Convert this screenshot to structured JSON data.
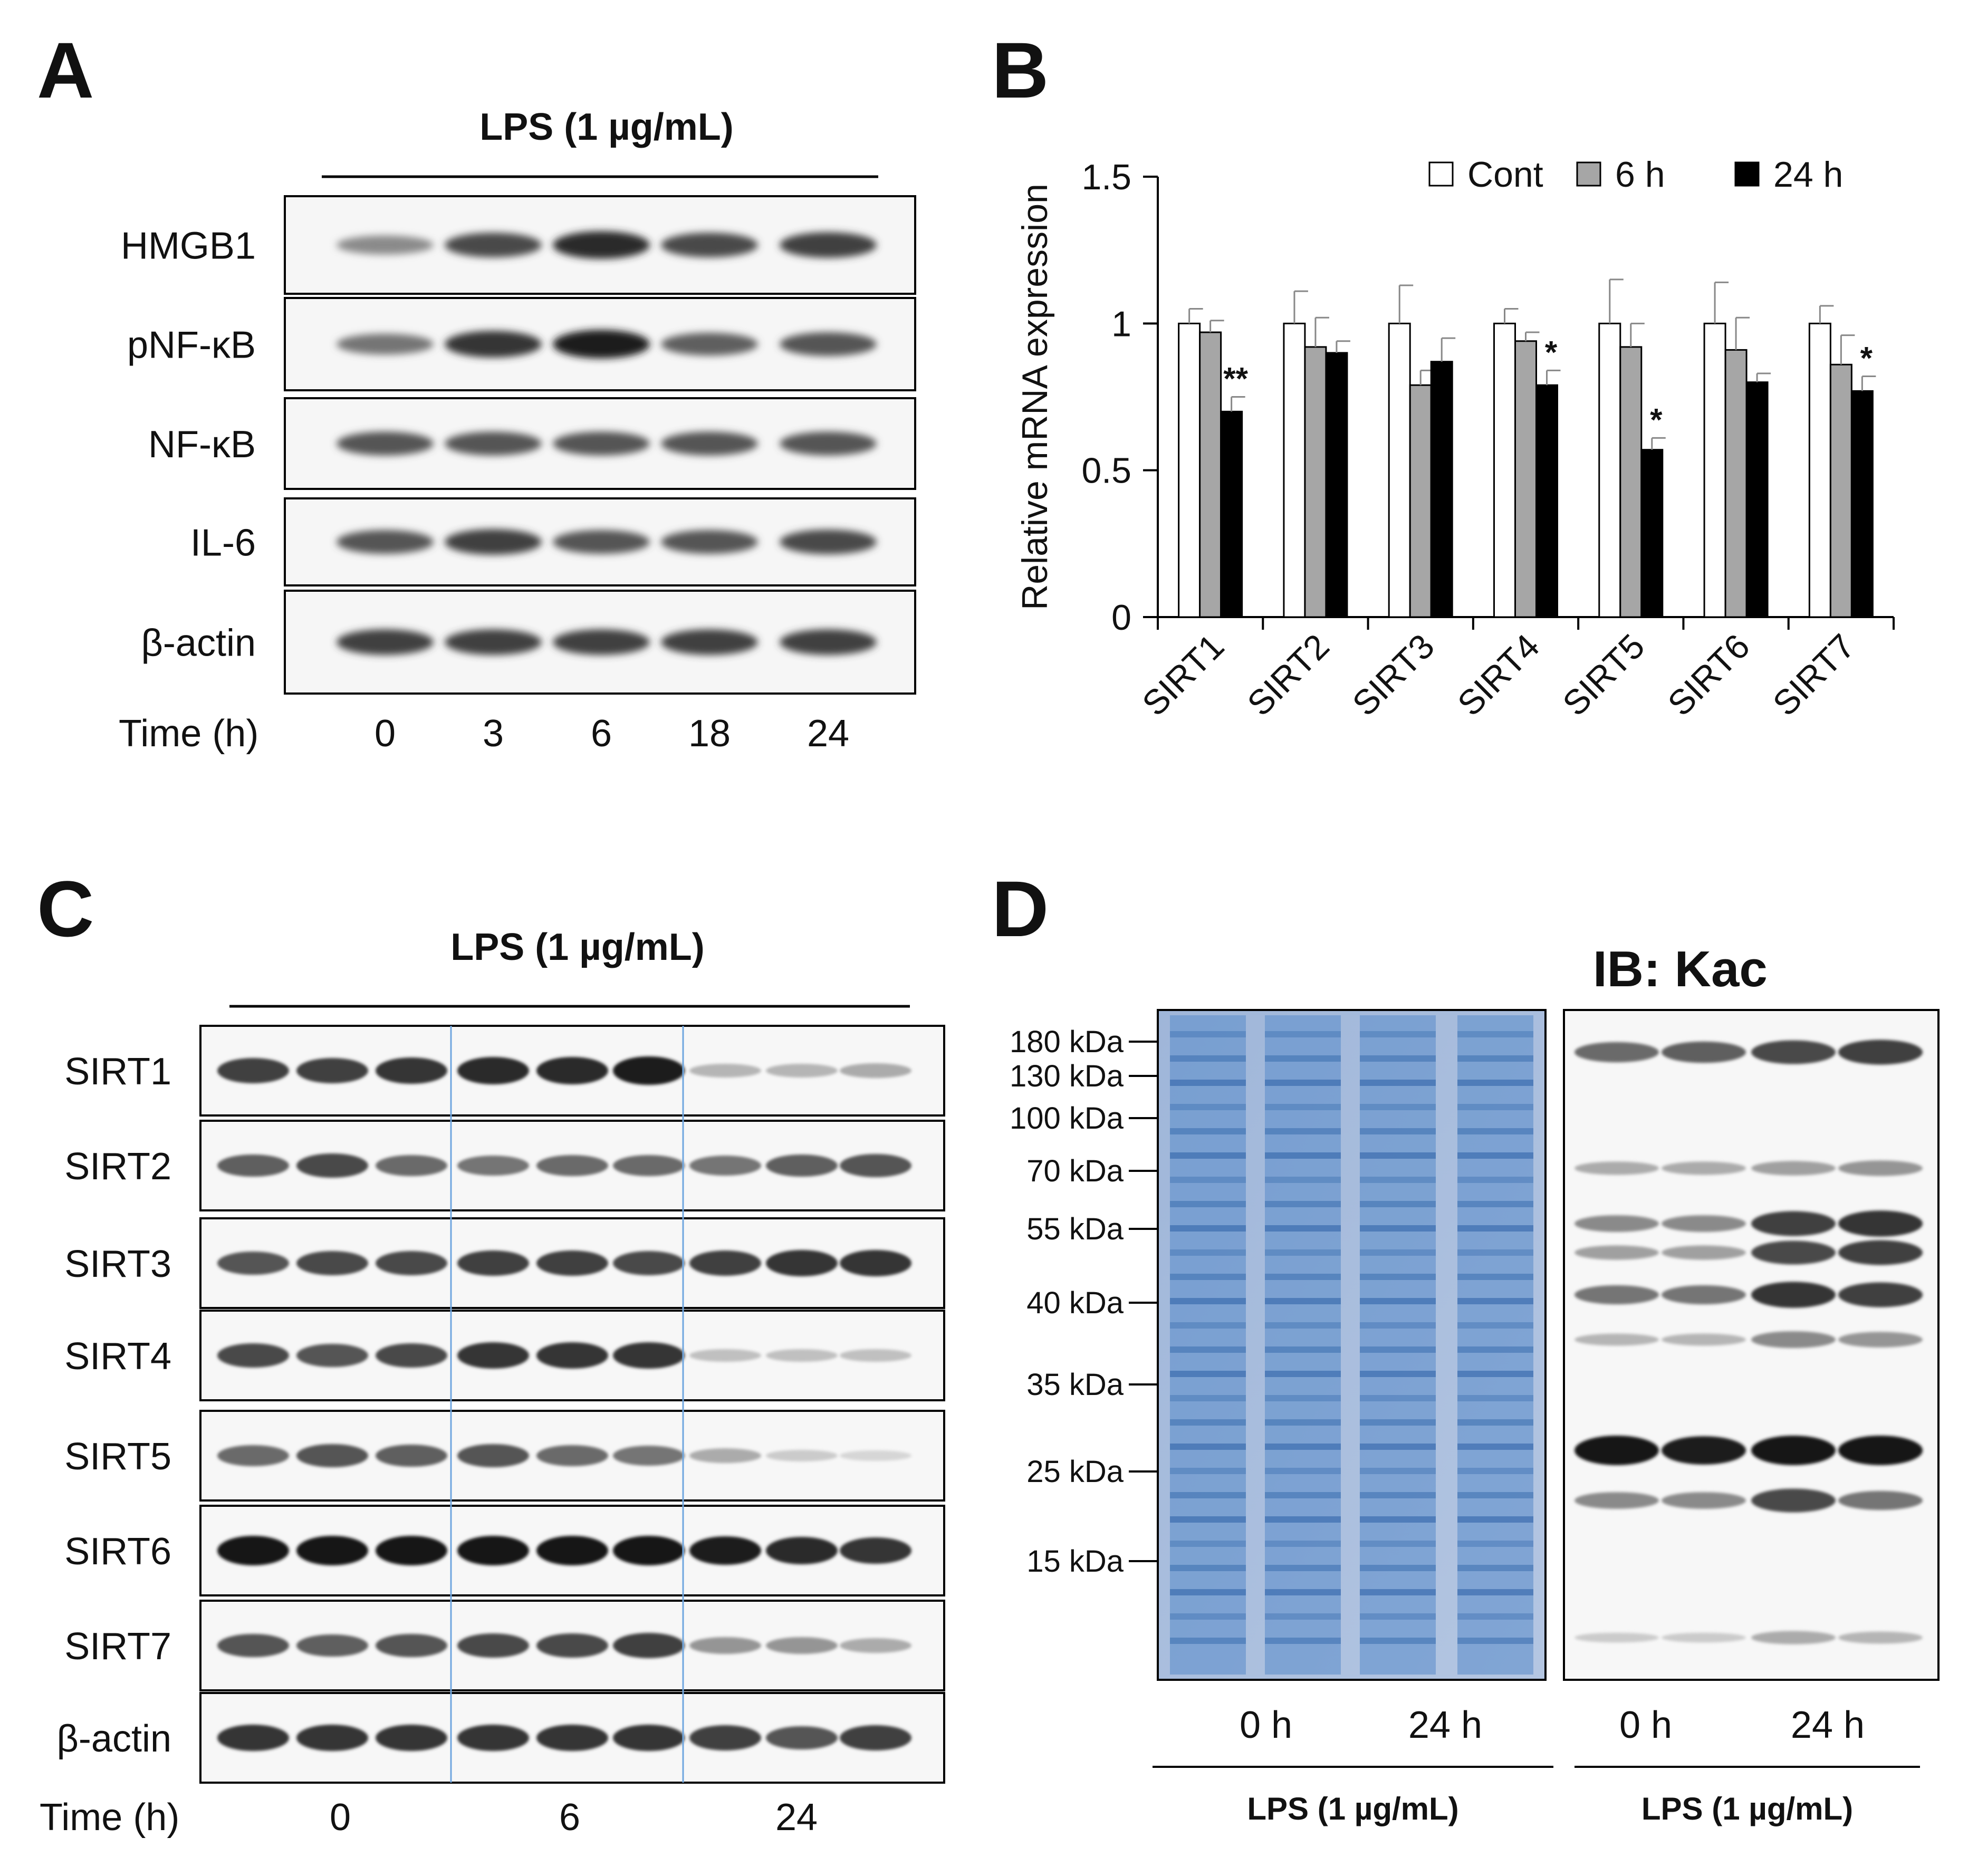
{
  "panels": {
    "a": {
      "letter": "A",
      "treatment": "LPS (1 µg/mL)",
      "blots": [
        "HMGB1",
        "pNF-κB",
        "NF-κB",
        "IL-6",
        "β-actin"
      ],
      "time_label": "Time (h)",
      "times": [
        "0",
        "3",
        "6",
        "18",
        "24"
      ],
      "band_intensity": [
        [
          0.45,
          0.75,
          0.9,
          0.75,
          0.8
        ],
        [
          0.55,
          0.85,
          0.95,
          0.65,
          0.7
        ],
        [
          0.7,
          0.7,
          0.7,
          0.7,
          0.7
        ],
        [
          0.7,
          0.8,
          0.7,
          0.7,
          0.75
        ],
        [
          0.8,
          0.8,
          0.8,
          0.8,
          0.8
        ]
      ]
    },
    "b": {
      "letter": "B"
    },
    "c": {
      "letter": "C",
      "treatment": "LPS (1 µg/mL)",
      "blots": [
        "SIRT1",
        "SIRT2",
        "SIRT3",
        "SIRT4",
        "SIRT5",
        "SIRT6",
        "SIRT7",
        "β-actin"
      ],
      "time_label": "Time (h)",
      "times": [
        "0",
        "6",
        "24"
      ],
      "band_intensity": [
        [
          0.8,
          0.8,
          0.85,
          0.9,
          0.9,
          0.95,
          0.25,
          0.25,
          0.3
        ],
        [
          0.65,
          0.75,
          0.6,
          0.55,
          0.6,
          0.6,
          0.55,
          0.65,
          0.7
        ],
        [
          0.7,
          0.75,
          0.75,
          0.8,
          0.8,
          0.75,
          0.8,
          0.85,
          0.85
        ],
        [
          0.75,
          0.7,
          0.75,
          0.85,
          0.85,
          0.85,
          0.2,
          0.2,
          0.2
        ],
        [
          0.6,
          0.7,
          0.65,
          0.7,
          0.6,
          0.55,
          0.3,
          0.15,
          0.1
        ],
        [
          1.0,
          1.0,
          1.0,
          1.0,
          1.0,
          1.0,
          0.95,
          0.9,
          0.85
        ],
        [
          0.7,
          0.65,
          0.7,
          0.75,
          0.75,
          0.8,
          0.4,
          0.4,
          0.3
        ],
        [
          0.85,
          0.85,
          0.85,
          0.85,
          0.85,
          0.85,
          0.8,
          0.7,
          0.8
        ]
      ]
    },
    "d": {
      "letter": "D",
      "title": "IB: Kac",
      "markers": [
        "180 kDa",
        "130 kDa",
        "100 kDa",
        "70 kDa",
        "55 kDa",
        "40 kDa",
        "35 kDa",
        "25 kDa",
        "15 kDa"
      ],
      "lanes": [
        "0 h",
        "24 h"
      ],
      "treatment": "LPS (1 µg/mL)"
    }
  },
  "chart_data": {
    "type": "bar",
    "categories": [
      "SIRT1",
      "SIRT2",
      "SIRT3",
      "SIRT4",
      "SIRT5",
      "SIRT6",
      "SIRT7"
    ],
    "series": [
      {
        "name": "Cont",
        "color": "#ffffff",
        "values": [
          1.0,
          1.0,
          1.0,
          1.0,
          1.0,
          1.0,
          1.0
        ],
        "errors": [
          0.05,
          0.11,
          0.13,
          0.05,
          0.15,
          0.14,
          0.06
        ]
      },
      {
        "name": "6 h",
        "color": "#a6a6a6",
        "values": [
          0.97,
          0.92,
          0.79,
          0.94,
          0.92,
          0.91,
          0.86
        ],
        "errors": [
          0.04,
          0.1,
          0.05,
          0.03,
          0.08,
          0.11,
          0.1
        ]
      },
      {
        "name": "24 h",
        "color": "#000000",
        "values": [
          0.7,
          0.9,
          0.87,
          0.79,
          0.57,
          0.8,
          0.77
        ],
        "errors": [
          0.05,
          0.04,
          0.08,
          0.05,
          0.04,
          0.03,
          0.05
        ]
      }
    ],
    "significance": [
      {
        "category": "SIRT1",
        "series": "24 h",
        "label": "**"
      },
      {
        "category": "SIRT4",
        "series": "24 h",
        "label": "*"
      },
      {
        "category": "SIRT5",
        "series": "24 h",
        "label": "*"
      },
      {
        "category": "SIRT7",
        "series": "24 h",
        "label": "*"
      }
    ],
    "ylabel": "Relative mRNA expression",
    "ylim": [
      0,
      1.5
    ],
    "yticks": [
      "0",
      "0.5",
      "1",
      "1.5"
    ],
    "legend_position": "top-right"
  }
}
